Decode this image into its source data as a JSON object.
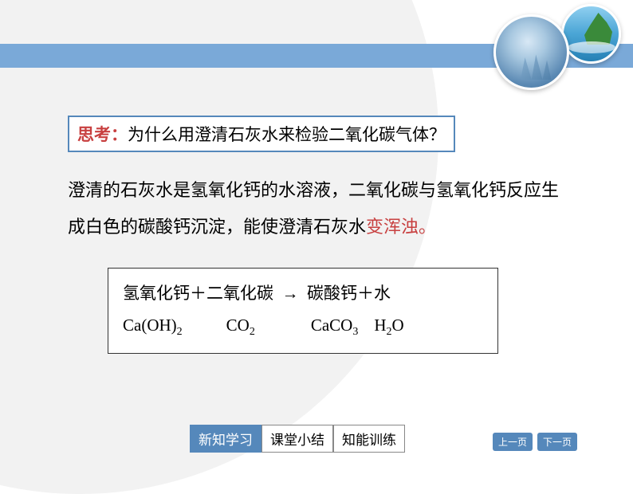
{
  "colors": {
    "accent_blue": "#5588bb",
    "bar_blue": "#7aa9d8",
    "red_text": "#c84040",
    "bg_circle": "#f2f2f2",
    "border_dark": "#333333"
  },
  "typography": {
    "body_fontsize": 22,
    "box_fontsize": 21,
    "tab_fontsize": 17,
    "pagebtn_fontsize": 12,
    "line_height": 2.1
  },
  "decoration": {
    "circle1": {
      "diameter": 95,
      "content": "lab-flasks",
      "border": "#ffffff"
    },
    "circle2": {
      "diameter": 75,
      "content": "beach-palm-sea",
      "border": "#ffffff"
    }
  },
  "question": {
    "label": "思考：",
    "text": "为什么用澄清石灰水来检验二氧化碳气体？"
  },
  "explanation": {
    "part1": "澄清的石灰水是氢氧化钙的水溶液，二氧化碳与氢氧化钙反应生成白色的碳酸钙沉淀，能使澄清石灰水",
    "highlight": "变浑浊",
    "part2": "。"
  },
  "equation": {
    "word_row": {
      "r1": "氢氧化钙",
      "op1": "＋",
      "r2": "二氧化碳",
      "arrow": "→",
      "p1": "碳酸钙",
      "op2": "＋",
      "p2": "水"
    },
    "formula_row": {
      "f1": "Ca(OH)",
      "s1": "2",
      "f2": "CO",
      "s2": "2",
      "f3": "CaCO",
      "s3": "3",
      "f4": "H",
      "s4": "2",
      "f5": "O"
    }
  },
  "nav": {
    "tabs": [
      "新知学习",
      "课堂小结",
      "知能训练"
    ],
    "active_index": 0,
    "prev": "上一页",
    "next": "下一页"
  }
}
